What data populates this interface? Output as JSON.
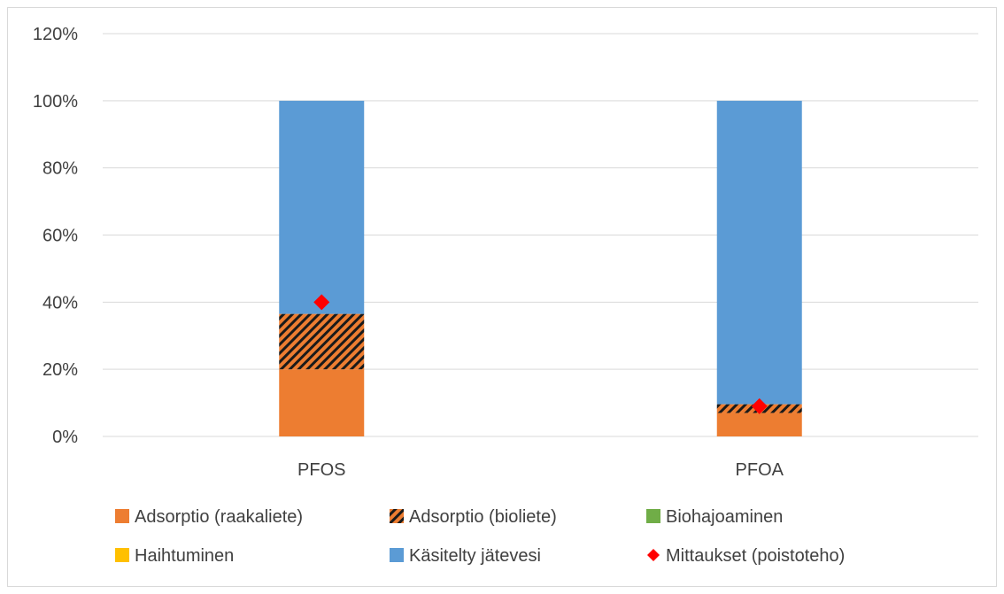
{
  "chart_data": {
    "type": "bar",
    "stacked": true,
    "categories": [
      "PFOS",
      "PFOA"
    ],
    "series": [
      {
        "name": "Adsorptio (raakaliete)",
        "values": [
          0.2,
          0.07
        ],
        "color": "#ed7d31",
        "pattern": "solid"
      },
      {
        "name": "Adsorptio (bioliete)",
        "values": [
          0.165,
          0.026
        ],
        "color": "#ed7d31",
        "pattern": "diagonal-hatch"
      },
      {
        "name": "Biohajoaminen",
        "values": [
          0,
          0
        ],
        "color": "#70ad47",
        "pattern": "solid"
      },
      {
        "name": "Haihtuminen",
        "values": [
          0,
          0
        ],
        "color": "#ffc000",
        "pattern": "solid"
      },
      {
        "name": "Käsitelty jätevesi",
        "values": [
          0.635,
          0.904
        ],
        "color": "#5b9bd5",
        "pattern": "solid"
      }
    ],
    "markers": {
      "name": "Mittaukset (poistoteho)",
      "values": [
        0.4,
        0.09
      ],
      "color": "#ff0000",
      "shape": "diamond"
    },
    "ylim": [
      0,
      1.2
    ],
    "yticks": [
      "0%",
      "20%",
      "40%",
      "60%",
      "80%",
      "100%",
      "120%"
    ],
    "grid": true,
    "legend_position": "bottom",
    "title": "",
    "xlabel": "",
    "ylabel": ""
  }
}
